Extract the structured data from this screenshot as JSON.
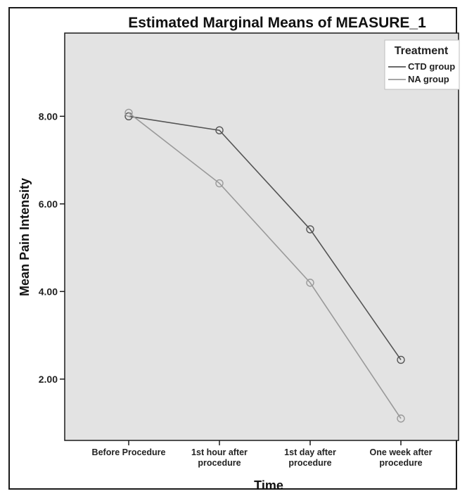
{
  "chart_data": {
    "type": "line",
    "title": "Estimated Marginal Means of MEASURE_1",
    "xlabel": "Time",
    "ylabel": "Mean Pain Intensity",
    "categories": [
      [
        "Before Procedure"
      ],
      [
        "1st hour after",
        "procedure"
      ],
      [
        "1st day after",
        "procedure"
      ],
      [
        "One week after",
        "procedure"
      ]
    ],
    "y_ticks": [
      "2.00",
      "4.00",
      "6.00",
      "8.00"
    ],
    "y_tick_values": [
      2,
      4,
      6,
      8
    ],
    "ylim": [
      0.6,
      9.9
    ],
    "grid": false,
    "legend": {
      "title": "Treatment",
      "placement": "top-right"
    },
    "series": [
      {
        "name": "CTD group",
        "values": [
          8.0,
          7.68,
          5.42,
          2.44
        ],
        "color": "#555555"
      },
      {
        "name": "NA group",
        "values": [
          8.08,
          6.47,
          4.2,
          1.1
        ],
        "color": "#9a9a9a"
      }
    ],
    "plot_background": "#e3e3e3"
  }
}
